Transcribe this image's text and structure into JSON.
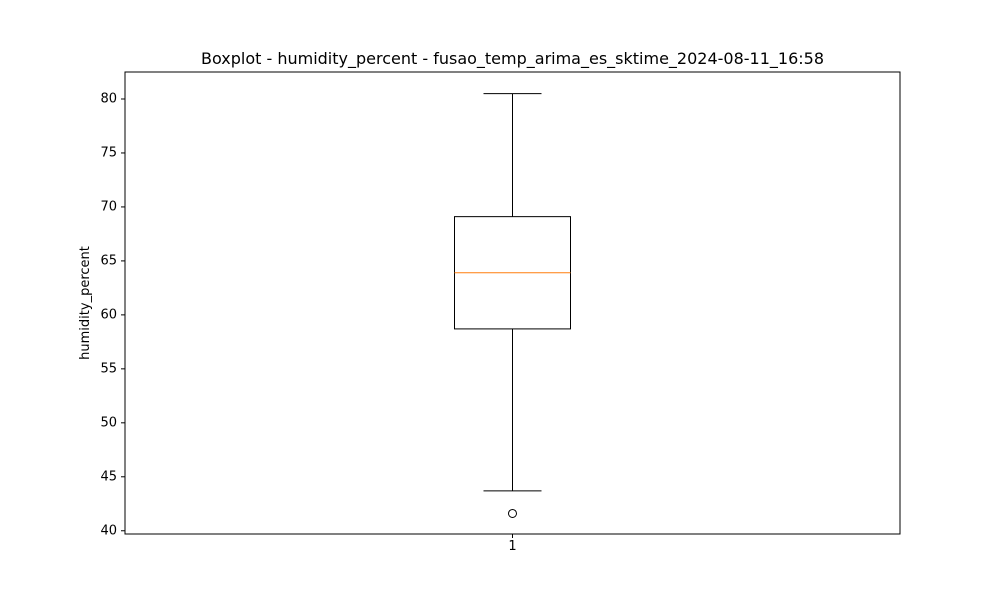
{
  "chart_data": {
    "type": "boxplot",
    "title": "Boxplot - humidity_percent - fusao_temp_arima_es_sktime_2024-08-11_16:58",
    "xlabel": "",
    "ylabel": "humidity_percent",
    "categories": [
      "1"
    ],
    "ylim": [
      39.7,
      82.5
    ],
    "yticks": [
      40,
      45,
      50,
      55,
      60,
      65,
      70,
      75,
      80
    ],
    "ytick_labels": [
      "40",
      "45",
      "50",
      "55",
      "60",
      "65",
      "70",
      "75",
      "80"
    ],
    "boxes": [
      {
        "category": "1",
        "whisker_low": 43.7,
        "q1": 58.7,
        "median": 63.9,
        "q3": 69.1,
        "whisker_high": 80.5,
        "outliers": [
          41.6
        ]
      }
    ],
    "grid": false,
    "colors": {
      "box": "#000000",
      "median": "#ff7f0e",
      "whisker": "#000000",
      "outlier": "#000000",
      "axes": "#000000"
    }
  }
}
